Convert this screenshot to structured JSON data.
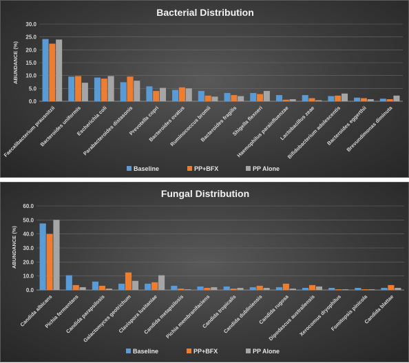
{
  "colors": {
    "Baseline": "#5b9bd5",
    "PP+BFX": "#ed7d31",
    "PP Alone": "#a5a5a5"
  },
  "chart_data": [
    {
      "type": "bar",
      "title": "Bacterial Distribution",
      "ylabel": "ABUNDANCE (%)",
      "ylim": [
        0,
        30
      ],
      "yticks": [
        "0.0",
        "5.0",
        "10.0",
        "15.0",
        "20.0",
        "25.0",
        "30.0"
      ],
      "grid": true,
      "legend": "bottom",
      "categories": [
        "Faecalibacterium prausnitzii",
        "Bacteroides uniformis",
        "Escherichia coli",
        "Parabacteroides distasonis",
        "Prevotella copri",
        "Bacteroides ovatus",
        "Ruminococcus bromii",
        "Bacteroides fragilis",
        "Shigella flexneri",
        "Haemophilus parainfluenzae",
        "Lactobacillus zeae",
        "Bifidobacterium adolescentis",
        "Bacteroides eggerthii",
        "Brevundimonas diminuta"
      ],
      "series": [
        {
          "name": "Baseline",
          "values": [
            24.2,
            9.6,
            9.2,
            7.4,
            5.8,
            4.4,
            4.0,
            3.2,
            3.2,
            2.4,
            2.4,
            2.0,
            1.4,
            1.0
          ]
        },
        {
          "name": "PP+BFX",
          "values": [
            22.4,
            9.8,
            8.8,
            9.6,
            4.0,
            5.4,
            2.2,
            2.4,
            2.8,
            0.6,
            1.2,
            2.2,
            1.2,
            0.8
          ]
        },
        {
          "name": "PP Alone",
          "values": [
            24.0,
            7.2,
            9.8,
            8.0,
            5.2,
            5.0,
            1.8,
            2.0,
            4.0,
            0.8,
            0.4,
            3.0,
            0.8,
            2.2
          ]
        }
      ]
    },
    {
      "type": "bar",
      "title": "Fungal Distribution",
      "ylabel": "ABUNDANCE (%)",
      "ylim": [
        0,
        60
      ],
      "yticks": [
        "0.0",
        "10.0",
        "20.0",
        "30.0",
        "40.0",
        "50.0",
        "60.0"
      ],
      "grid": true,
      "legend": "bottom",
      "categories": [
        "Candida albicans",
        "Pichia fermentans",
        "Candida parapsilosis",
        "Galactomyces geotrichum",
        "Clavispora lusitaniae",
        "Candida metapsilosis",
        "Pichia membranifaciens",
        "Candida tropicalis",
        "Candida dubliniensis",
        "Candida rugosa",
        "Dipodascus australiensis",
        "Xerocomus dryophilus",
        "Fomitopsis pinicola",
        "Candida blattae"
      ],
      "series": [
        {
          "name": "Baseline",
          "values": [
            47.5,
            10.5,
            6.0,
            4.5,
            4.5,
            3.0,
            2.5,
            2.5,
            2.0,
            2.0,
            1.5,
            1.5,
            1.5,
            1.5
          ]
        },
        {
          "name": "PP+BFX",
          "values": [
            40.0,
            3.5,
            3.0,
            12.5,
            5.5,
            1.0,
            1.5,
            1.0,
            3.0,
            4.5,
            3.5,
            0.5,
            0.5,
            3.5
          ]
        },
        {
          "name": "PP Alone",
          "values": [
            50.0,
            2.0,
            1.0,
            6.5,
            10.5,
            0.5,
            2.0,
            1.5,
            1.5,
            1.0,
            2.5,
            0.5,
            0.5,
            1.5
          ]
        }
      ]
    }
  ]
}
